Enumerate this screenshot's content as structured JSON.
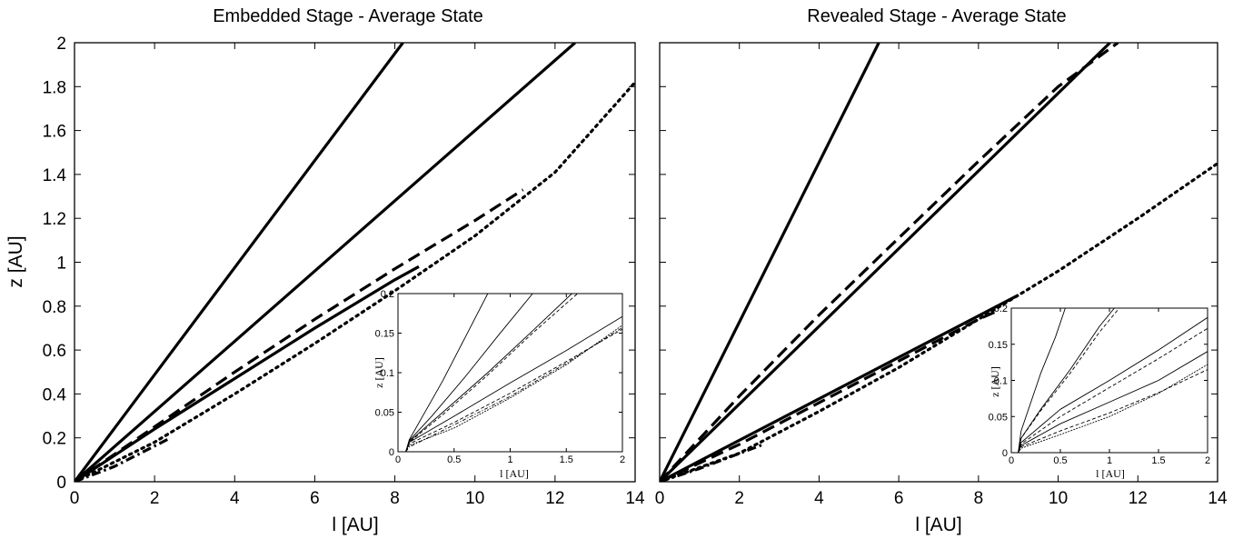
{
  "chart_data": [
    {
      "type": "line",
      "title": "Embedded Stage - Average State",
      "xlabel": "l [AU]",
      "ylabel": "z [AU]",
      "xlim": [
        0,
        14
      ],
      "ylim": [
        0,
        2
      ],
      "xticks": [
        "0",
        "2",
        "4",
        "6",
        "8",
        "10",
        "12",
        "14"
      ],
      "yticks": [
        "0",
        "0.2",
        "0.4",
        "0.6",
        "0.8",
        "1",
        "1.2",
        "1.4",
        "1.6",
        "1.8",
        "2"
      ],
      "series": [
        {
          "style": "solid",
          "x": [
            0,
            8.2
          ],
          "y": [
            0,
            2.0
          ]
        },
        {
          "style": "solid",
          "x": [
            0,
            12.5
          ],
          "y": [
            0,
            2.0
          ]
        },
        {
          "style": "dashed",
          "x": [
            0,
            2,
            4,
            6,
            8,
            10,
            11.2
          ],
          "y": [
            0,
            0.25,
            0.5,
            0.74,
            0.97,
            1.19,
            1.33
          ]
        },
        {
          "style": "solid",
          "x": [
            0,
            2,
            4,
            6,
            8,
            8.6
          ],
          "y": [
            0,
            0.24,
            0.47,
            0.7,
            0.92,
            0.98
          ]
        },
        {
          "style": "dotted",
          "x": [
            0,
            2,
            4,
            6,
            8,
            10,
            12,
            14
          ],
          "y": [
            0,
            0.18,
            0.4,
            0.63,
            0.87,
            1.12,
            1.41,
            1.82
          ]
        },
        {
          "style": "dashdot",
          "x": [
            0,
            1,
            2.4
          ],
          "y": [
            0,
            0.07,
            0.2
          ]
        }
      ],
      "inset": {
        "xlabel": "l [AU]",
        "ylabel": "z [AU]",
        "xlim": [
          0,
          2
        ],
        "ylim": [
          0,
          0.2
        ],
        "xticks": [
          "0",
          "0.5",
          "1",
          "1.5",
          "2"
        ],
        "yticks": [
          "0",
          "0.05",
          "0.1",
          "0.15",
          "0.2"
        ],
        "series": [
          {
            "style": "solid",
            "x": [
              0.07,
              0.1,
              0.2,
              0.4,
              0.6,
              0.8
            ],
            "y": [
              0,
              0.015,
              0.04,
              0.09,
              0.145,
              0.2
            ]
          },
          {
            "style": "solid",
            "x": [
              0.07,
              0.1,
              0.3,
              0.6,
              0.9,
              1.2
            ],
            "y": [
              0,
              0.014,
              0.045,
              0.095,
              0.148,
              0.2
            ]
          },
          {
            "style": "solid",
            "x": [
              0.07,
              0.1,
              0.4,
              0.8,
              1.2,
              1.55
            ],
            "y": [
              0,
              0.013,
              0.05,
              0.1,
              0.153,
              0.2
            ]
          },
          {
            "style": "dashed",
            "x": [
              0.07,
              0.1,
              0.4,
              0.8,
              1.2,
              1.6
            ],
            "y": [
              0,
              0.012,
              0.047,
              0.097,
              0.15,
              0.2
            ]
          },
          {
            "style": "solid",
            "x": [
              0.07,
              0.1,
              0.5,
              1.0,
              1.5,
              2.0
            ],
            "y": [
              0,
              0.012,
              0.045,
              0.087,
              0.128,
              0.171
            ]
          },
          {
            "style": "dashed",
            "x": [
              0.07,
              0.1,
              0.5,
              1.0,
              1.5,
              2.0
            ],
            "y": [
              0,
              0.01,
              0.037,
              0.074,
              0.114,
              0.155
            ]
          },
          {
            "style": "dotted",
            "x": [
              0.07,
              0.1,
              0.5,
              1.0,
              1.5,
              2.0
            ],
            "y": [
              0,
              0.008,
              0.03,
              0.068,
              0.11,
              0.16
            ]
          },
          {
            "style": "dashdot",
            "x": [
              0.07,
              0.1,
              0.5,
              1.0,
              1.5,
              2.0
            ],
            "y": [
              0,
              0.006,
              0.034,
              0.07,
              0.112,
              0.157
            ]
          }
        ]
      }
    },
    {
      "type": "line",
      "title": "Revealed Stage - Average State",
      "xlabel": "l [AU]",
      "ylabel": "",
      "xlim": [
        0,
        14
      ],
      "ylim": [
        0,
        2
      ],
      "xticks": [
        "0",
        "2",
        "4",
        "6",
        "8",
        "10",
        "12",
        "14"
      ],
      "yticks": [],
      "series": [
        {
          "style": "solid",
          "x": [
            0,
            5.5
          ],
          "y": [
            0,
            2.0
          ]
        },
        {
          "style": "dashed",
          "x": [
            0,
            2,
            4,
            6,
            8,
            10,
            11.5
          ],
          "y": [
            0,
            0.39,
            0.76,
            1.11,
            1.46,
            1.8,
            2.0
          ]
        },
        {
          "style": "solid",
          "x": [
            0,
            11.3
          ],
          "y": [
            0,
            2.0
          ]
        },
        {
          "style": "solid",
          "x": [
            0,
            9.0
          ],
          "y": [
            0,
            0.85
          ]
        },
        {
          "style": "dashed",
          "x": [
            0,
            2,
            4,
            6,
            8,
            8.5
          ],
          "y": [
            0,
            0.17,
            0.36,
            0.55,
            0.74,
            0.78
          ]
        },
        {
          "style": "dotted",
          "x": [
            0,
            2,
            4,
            6,
            8,
            10,
            12,
            14
          ],
          "y": [
            0,
            0.13,
            0.32,
            0.52,
            0.74,
            0.96,
            1.2,
            1.45
          ]
        },
        {
          "style": "dashdot",
          "x": [
            0,
            1,
            2.6
          ],
          "y": [
            0,
            0.06,
            0.17
          ]
        }
      ],
      "inset": {
        "xlabel": "l [AU]",
        "ylabel": "z [AU]",
        "xlim": [
          0,
          2
        ],
        "ylim": [
          0,
          0.2
        ],
        "xticks": [
          "0",
          "0.5",
          "1",
          "1.5",
          "2"
        ],
        "yticks": [
          "0",
          "0.05",
          "0.1",
          "0.15",
          "0.2"
        ],
        "series": [
          {
            "style": "solid",
            "x": [
              0.07,
              0.1,
              0.2,
              0.3,
              0.45,
              0.55
            ],
            "y": [
              0,
              0.03,
              0.07,
              0.11,
              0.16,
              0.2
            ]
          },
          {
            "style": "solid",
            "x": [
              0.07,
              0.1,
              0.3,
              0.6,
              0.9,
              1.05
            ],
            "y": [
              0,
              0.02,
              0.06,
              0.115,
              0.175,
              0.2
            ]
          },
          {
            "style": "dashed",
            "x": [
              0.07,
              0.1,
              0.3,
              0.6,
              0.9,
              1.1
            ],
            "y": [
              0,
              0.02,
              0.058,
              0.11,
              0.167,
              0.2
            ]
          },
          {
            "style": "solid",
            "x": [
              0.07,
              0.1,
              0.5,
              1.0,
              1.5,
              2.0
            ],
            "y": [
              0,
              0.014,
              0.06,
              0.1,
              0.142,
              0.187
            ]
          },
          {
            "style": "dashed",
            "x": [
              0.07,
              0.1,
              0.5,
              1.0,
              1.5,
              2.0
            ],
            "y": [
              0,
              0.012,
              0.05,
              0.09,
              0.13,
              0.172
            ]
          },
          {
            "style": "solid",
            "x": [
              0.07,
              0.1,
              0.5,
              1.0,
              1.5,
              2.0
            ],
            "y": [
              0,
              0.01,
              0.04,
              0.07,
              0.1,
              0.14
            ]
          },
          {
            "style": "dashed",
            "x": [
              0.07,
              0.1,
              0.5,
              1.0,
              1.5,
              2.0
            ],
            "y": [
              0,
              0.008,
              0.03,
              0.055,
              0.083,
              0.115
            ]
          },
          {
            "style": "dotted",
            "x": [
              0.07,
              0.1,
              0.5,
              1.0,
              1.5,
              2.0
            ],
            "y": [
              0,
              0.006,
              0.025,
              0.05,
              0.082,
              0.122
            ]
          }
        ]
      }
    }
  ]
}
